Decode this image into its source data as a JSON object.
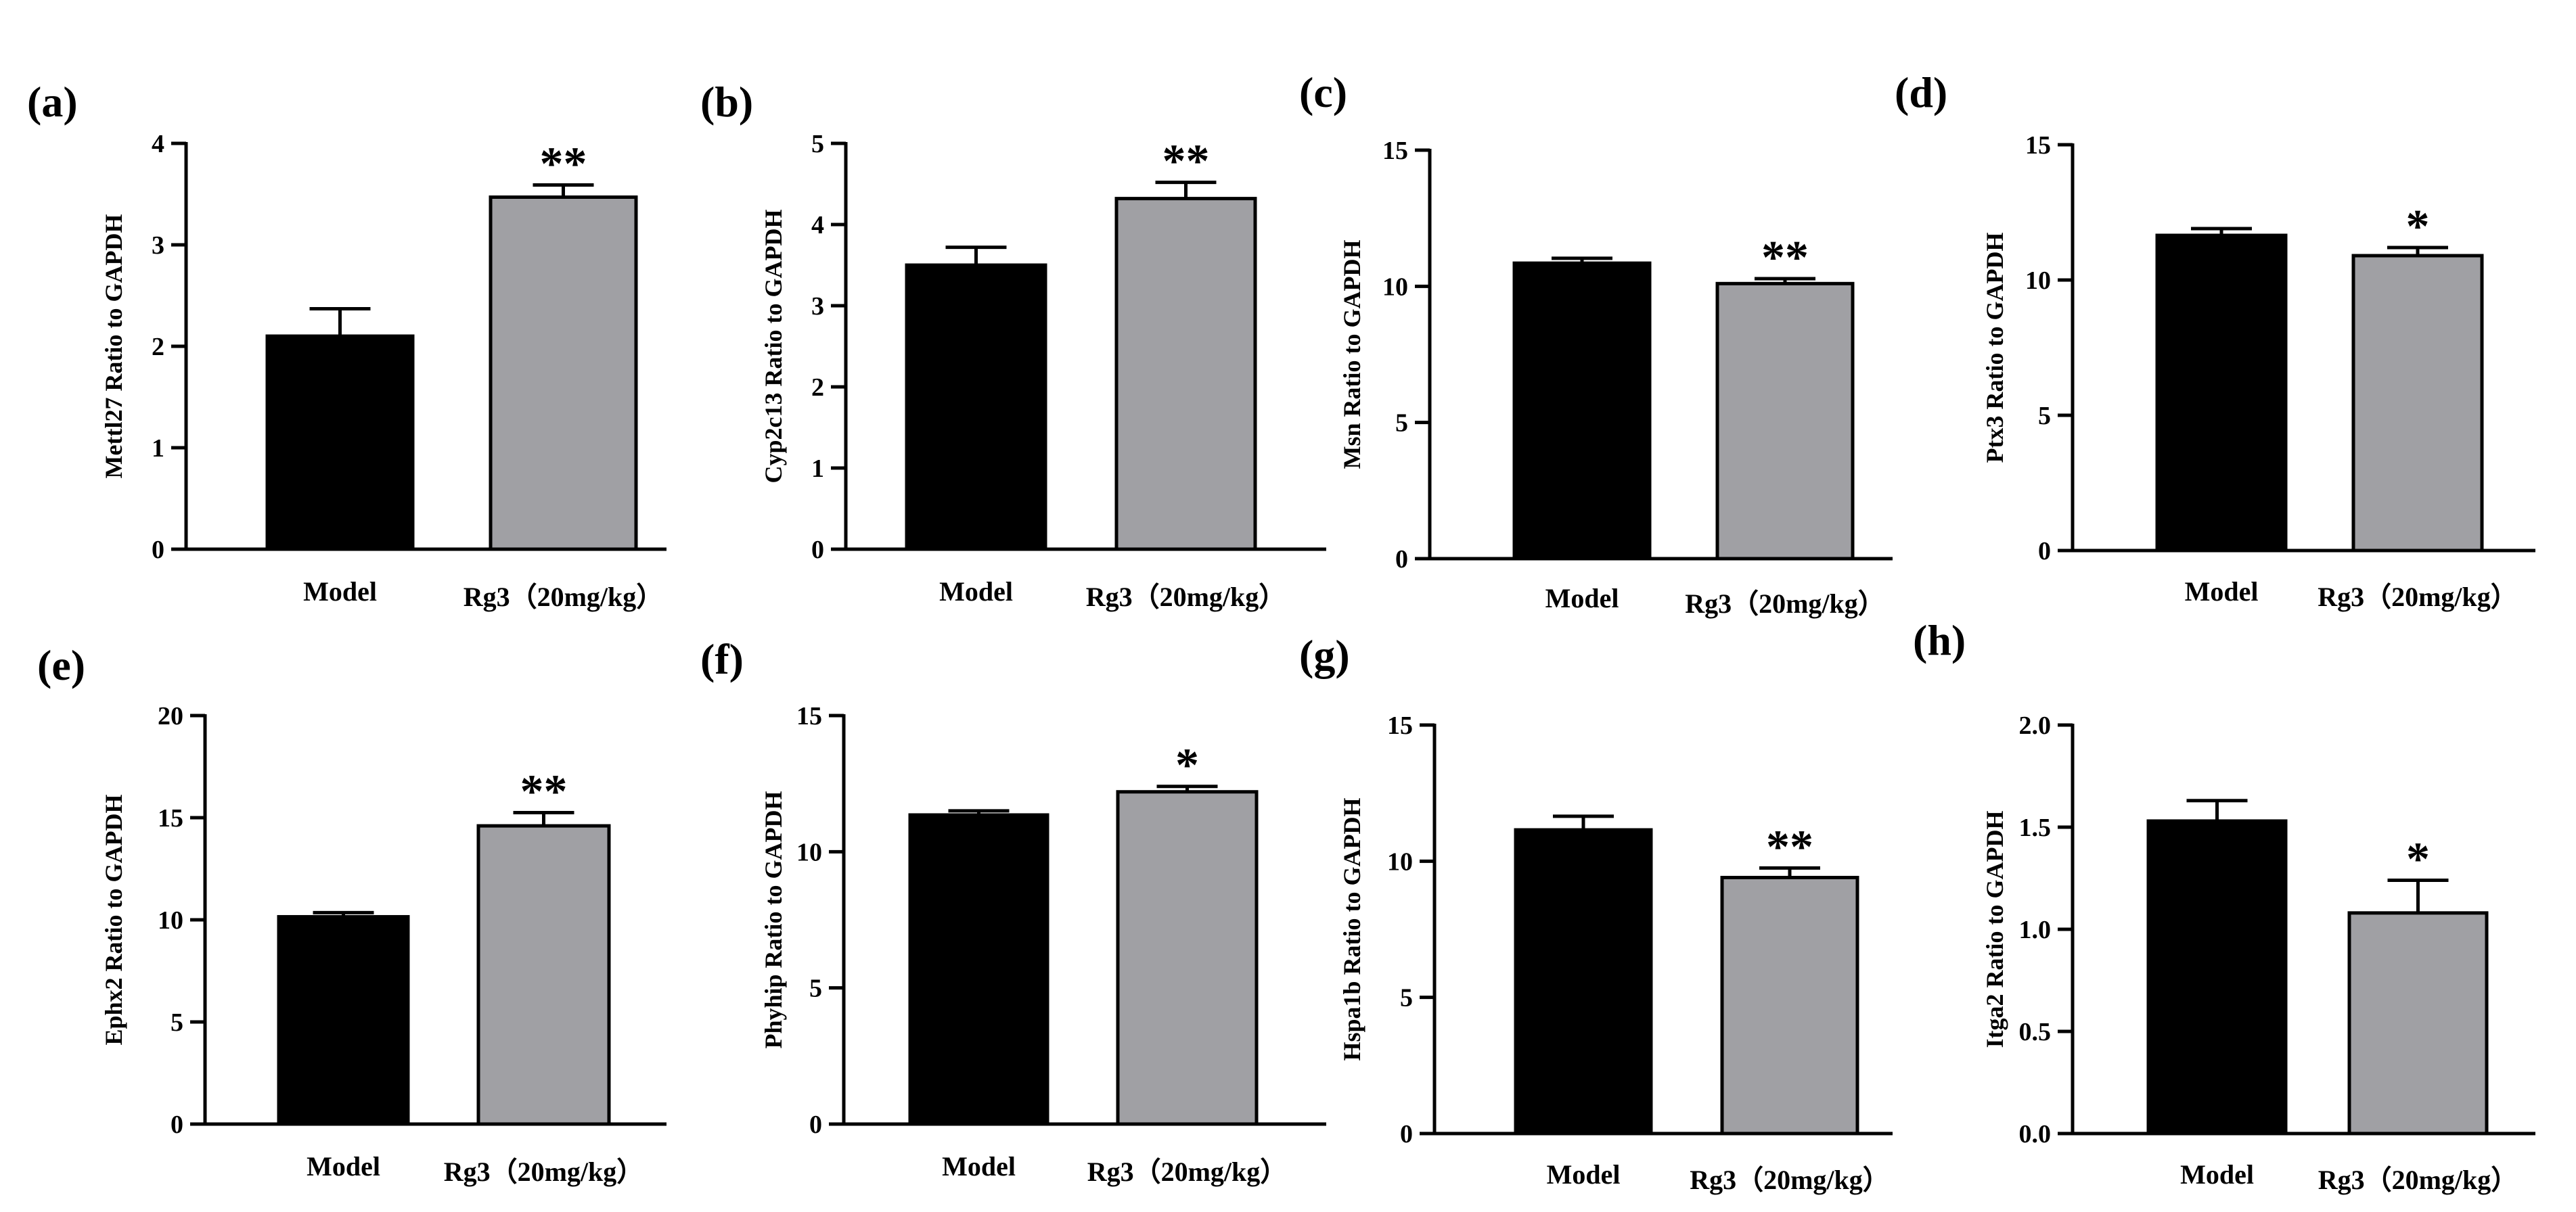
{
  "colors": {
    "model": "#000000",
    "rg3": "#a0a0a4",
    "axis": "#000000"
  },
  "chart_data": [
    {
      "panel": "(a)",
      "type": "bar",
      "ylabel": "Mettl27 Ratio to GAPDH",
      "categories": [
        "Model",
        "Rg3（20mg/kg）"
      ],
      "values": [
        2.1,
        3.47
      ],
      "errors": [
        0.27,
        0.12
      ],
      "ylim": [
        0,
        4
      ],
      "yticks": [
        "0",
        "1",
        "2",
        "3",
        "4"
      ],
      "significance": "**"
    },
    {
      "panel": "(b)",
      "type": "bar",
      "ylabel": "Cyp2c13 Ratio to GAPDH",
      "categories": [
        "Model",
        "Rg3（20mg/kg）"
      ],
      "values": [
        3.5,
        4.32
      ],
      "errors": [
        0.22,
        0.2
      ],
      "ylim": [
        0,
        5
      ],
      "yticks": [
        "0",
        "1",
        "2",
        "3",
        "4",
        "5"
      ],
      "significance": "**"
    },
    {
      "panel": "(c)",
      "type": "bar",
      "ylabel": "Msn Ratio to GAPDH",
      "categories": [
        "Model",
        "Rg3（20mg/kg）"
      ],
      "values": [
        10.85,
        10.1
      ],
      "errors": [
        0.18,
        0.18
      ],
      "ylim": [
        0,
        15
      ],
      "yticks": [
        "0",
        "5",
        "10",
        "15"
      ],
      "significance": "**"
    },
    {
      "panel": "(d)",
      "type": "bar",
      "ylabel": "Ptx3  Ratio to GAPDH",
      "categories": [
        "Model",
        "Rg3（20mg/kg）"
      ],
      "values": [
        11.65,
        10.9
      ],
      "errors": [
        0.25,
        0.3
      ],
      "ylim": [
        0,
        15
      ],
      "yticks": [
        "0",
        "5",
        "10",
        "15"
      ],
      "significance": "*"
    },
    {
      "panel": "(e)",
      "type": "bar",
      "ylabel": "Ephx2 Ratio to GAPDH",
      "categories": [
        "Model",
        "Rg3（20mg/kg）"
      ],
      "values": [
        10.15,
        14.6
      ],
      "errors": [
        0.2,
        0.65
      ],
      "ylim": [
        0,
        20
      ],
      "yticks": [
        "0",
        "5",
        "10",
        "15",
        "20"
      ],
      "significance": "**"
    },
    {
      "panel": "(f)",
      "type": "bar",
      "ylabel": "Phyhip Ratio to GAPDH",
      "categories": [
        "Model",
        "Rg3（20mg/kg）"
      ],
      "values": [
        11.35,
        12.2
      ],
      "errors": [
        0.15,
        0.2
      ],
      "ylim": [
        0,
        15
      ],
      "yticks": [
        "0",
        "5",
        "10",
        "15"
      ],
      "significance": "*"
    },
    {
      "panel": "(g)",
      "type": "bar",
      "ylabel": "Hspa1b Ratio to GAPDH",
      "categories": [
        "Model",
        "Rg3（20mg/kg）"
      ],
      "values": [
        11.15,
        9.4
      ],
      "errors": [
        0.5,
        0.35
      ],
      "ylim": [
        0,
        15
      ],
      "yticks": [
        "0",
        "5",
        "10",
        "15"
      ],
      "significance": "**"
    },
    {
      "panel": "(h)",
      "type": "bar",
      "ylabel": "Itga2 Ratio to GAPDH",
      "categories": [
        "Model",
        "Rg3（20mg/kg）"
      ],
      "values": [
        1.53,
        1.08
      ],
      "errors": [
        0.1,
        0.16
      ],
      "ylim": [
        0,
        2
      ],
      "yticks": [
        "0.0",
        "0.5",
        "1.0",
        "1.5",
        "2.0"
      ],
      "significance": "*"
    }
  ]
}
